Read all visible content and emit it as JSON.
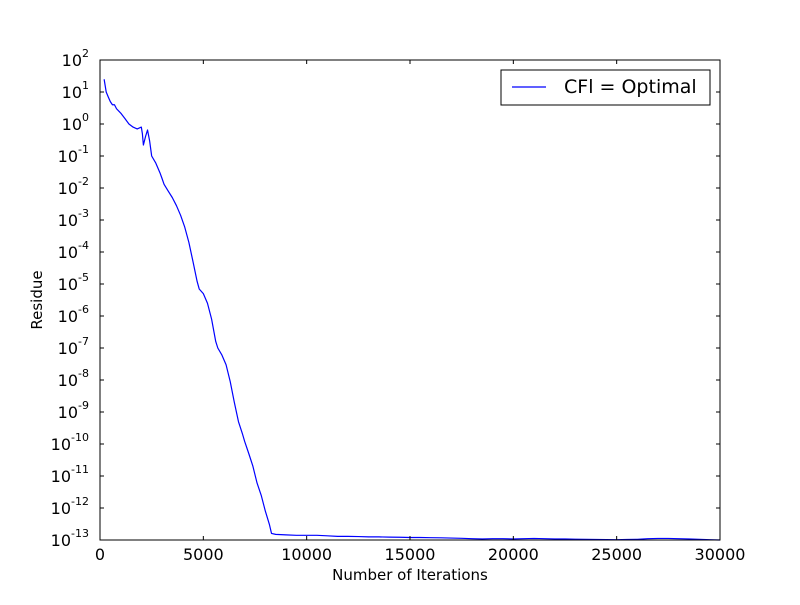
{
  "chart_data": {
    "type": "line",
    "title": "",
    "xlabel": "Number of Iterations",
    "ylabel": "Residue",
    "xlim": [
      0,
      30000
    ],
    "ylim_exponent": [
      -13,
      2
    ],
    "yscale": "log",
    "grid": false,
    "legend_position": "top-right",
    "x_ticks": [
      "0",
      "5000",
      "10000",
      "15000",
      "20000",
      "25000",
      "30000"
    ],
    "y_ticks": [
      {
        "base": "10",
        "exp": "2"
      },
      {
        "base": "10",
        "exp": "1"
      },
      {
        "base": "10",
        "exp": "0"
      },
      {
        "base": "10",
        "exp": "-1"
      },
      {
        "base": "10",
        "exp": "-2"
      },
      {
        "base": "10",
        "exp": "-3"
      },
      {
        "base": "10",
        "exp": "-4"
      },
      {
        "base": "10",
        "exp": "-5"
      },
      {
        "base": "10",
        "exp": "-6"
      },
      {
        "base": "10",
        "exp": "-7"
      },
      {
        "base": "10",
        "exp": "-8"
      },
      {
        "base": "10",
        "exp": "-9"
      },
      {
        "base": "10",
        "exp": "-10"
      },
      {
        "base": "10",
        "exp": "-11"
      },
      {
        "base": "10",
        "exp": "-12"
      },
      {
        "base": "10",
        "exp": "-13"
      }
    ],
    "series": [
      {
        "name": "CFl = Optimal",
        "color": "#0000ff",
        "points": [
          [
            200,
            25
          ],
          [
            300,
            10
          ],
          [
            400,
            7
          ],
          [
            500,
            5
          ],
          [
            600,
            4
          ],
          [
            700,
            4
          ],
          [
            800,
            3
          ],
          [
            1000,
            2.2
          ],
          [
            1200,
            1.5
          ],
          [
            1400,
            1.0
          ],
          [
            1600,
            0.8
          ],
          [
            1800,
            0.7
          ],
          [
            2000,
            0.8
          ],
          [
            2050,
            0.5
          ],
          [
            2100,
            0.22
          ],
          [
            2200,
            0.4
          ],
          [
            2300,
            0.65
          ],
          [
            2400,
            0.3
          ],
          [
            2500,
            0.1
          ],
          [
            2700,
            0.06
          ],
          [
            2900,
            0.03
          ],
          [
            3000,
            0.02
          ],
          [
            3100,
            0.013
          ],
          [
            3300,
            0.008
          ],
          [
            3500,
            0.005
          ],
          [
            3700,
            0.0028
          ],
          [
            3900,
            0.0014
          ],
          [
            4100,
            0.0006
          ],
          [
            4300,
            0.0002
          ],
          [
            4500,
            5e-05
          ],
          [
            4700,
            1.2e-05
          ],
          [
            4800,
            7e-06
          ],
          [
            5000,
            5e-06
          ],
          [
            5200,
            2.5e-06
          ],
          [
            5400,
            8e-07
          ],
          [
            5600,
            1.6e-07
          ],
          [
            5700,
            1e-07
          ],
          [
            5900,
            6e-08
          ],
          [
            6100,
            3e-08
          ],
          [
            6300,
            9e-09
          ],
          [
            6500,
            2e-09
          ],
          [
            6700,
            5e-10
          ],
          [
            6900,
            2e-10
          ],
          [
            7000,
            1.2e-10
          ],
          [
            7200,
            5e-11
          ],
          [
            7400,
            2e-11
          ],
          [
            7600,
            6e-12
          ],
          [
            7800,
            2.5e-12
          ],
          [
            8000,
            8e-13
          ],
          [
            8200,
            3e-13
          ],
          [
            8300,
            1.6e-13
          ],
          [
            8500,
            1.5e-13
          ],
          [
            9000,
            1.45e-13
          ],
          [
            9500,
            1.4e-13
          ],
          [
            10000,
            1.4e-13
          ],
          [
            10500,
            1.4e-13
          ],
          [
            11000,
            1.35e-13
          ],
          [
            11500,
            1.3e-13
          ],
          [
            12000,
            1.3e-13
          ],
          [
            12500,
            1.28e-13
          ],
          [
            13000,
            1.25e-13
          ],
          [
            13500,
            1.25e-13
          ],
          [
            14000,
            1.23e-13
          ],
          [
            14500,
            1.22e-13
          ],
          [
            15000,
            1.2e-13
          ],
          [
            15500,
            1.2e-13
          ],
          [
            16000,
            1.18e-13
          ],
          [
            16500,
            1.17e-13
          ],
          [
            17000,
            1.15e-13
          ],
          [
            17500,
            1.13e-13
          ],
          [
            18000,
            1.1e-13
          ],
          [
            18500,
            1.08e-13
          ],
          [
            19000,
            1.1e-13
          ],
          [
            19500,
            1.1e-13
          ],
          [
            20000,
            1.08e-13
          ],
          [
            20500,
            1.1e-13
          ],
          [
            21000,
            1.12e-13
          ],
          [
            21500,
            1.1e-13
          ],
          [
            22000,
            1.08e-13
          ],
          [
            22500,
            1.08e-13
          ],
          [
            23000,
            1.06e-13
          ],
          [
            23500,
            1.05e-13
          ],
          [
            24000,
            1.04e-13
          ],
          [
            24500,
            1.03e-13
          ],
          [
            25000,
            1.02e-13
          ],
          [
            25500,
            1.04e-13
          ],
          [
            26000,
            1.05e-13
          ],
          [
            26500,
            1.1e-13
          ],
          [
            27000,
            1.12e-13
          ],
          [
            27500,
            1.12e-13
          ],
          [
            28000,
            1.1e-13
          ],
          [
            28500,
            1.08e-13
          ],
          [
            29000,
            1.05e-13
          ],
          [
            29500,
            1.02e-13
          ],
          [
            30000,
            1e-13
          ]
        ]
      }
    ]
  }
}
